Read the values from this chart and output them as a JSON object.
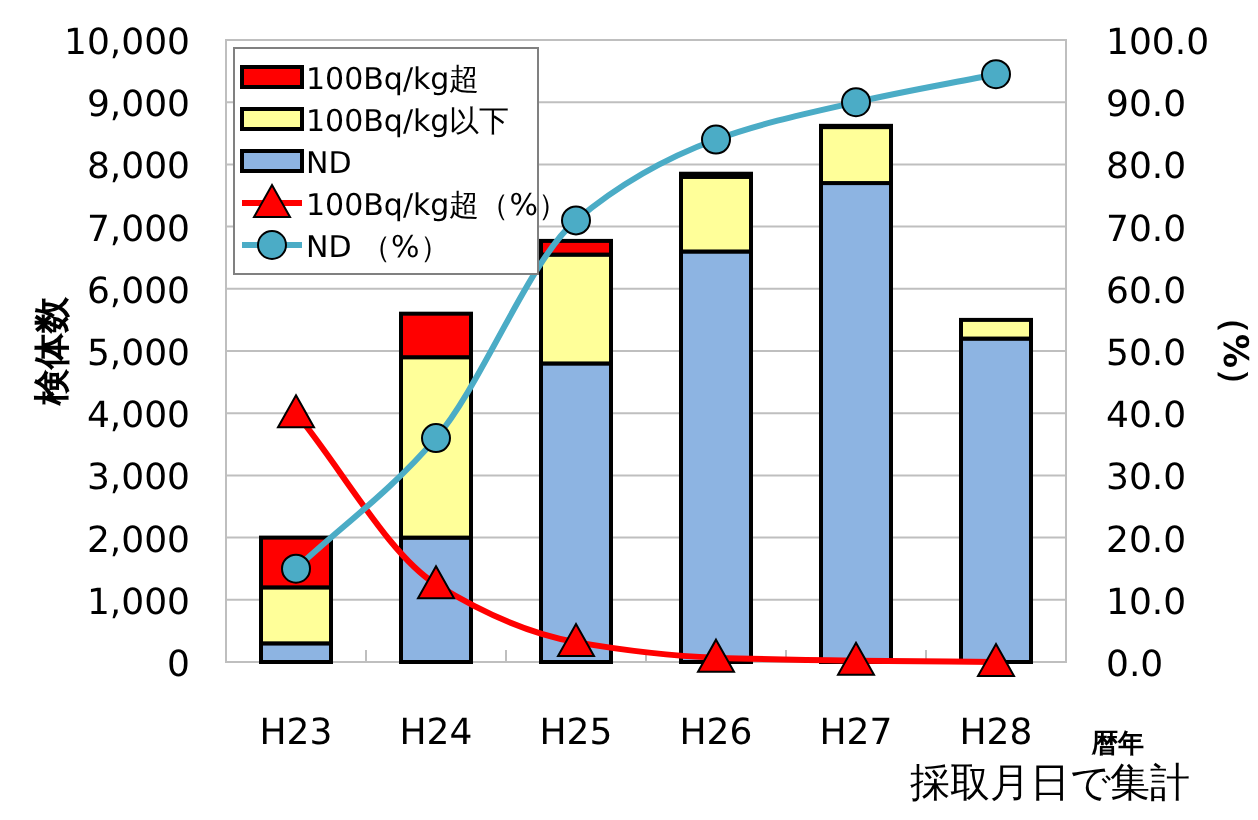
{
  "chart_data": {
    "type": "bar",
    "stacked": true,
    "ylabel": "検体数",
    "y2label": "（%）",
    "xlabel": "暦年",
    "annotations": [
      "採取月日で集計"
    ],
    "categories": [
      "H23",
      "H24",
      "H25",
      "H26",
      "H27",
      "H28"
    ],
    "series": [
      {
        "name": "ND",
        "color": "#8db4e2",
        "values": [
          300,
          2000,
          4800,
          6600,
          7700,
          5200
        ]
      },
      {
        "name": "100Bq/kg以下",
        "color": "#ffff99",
        "values": [
          900,
          2900,
          1750,
          1200,
          900,
          300
        ]
      },
      {
        "name": "100Bq/kg超",
        "color": "#ff0000",
        "values": [
          800,
          700,
          220,
          50,
          20,
          0
        ]
      },
      {
        "name": "100Bq/kg超（%）",
        "type": "line",
        "axis": "y2",
        "marker": "triangle",
        "color": "#ff0000",
        "values": [
          40,
          12.5,
          3.2,
          0.7,
          0.2,
          0
        ]
      },
      {
        "name": "ND （%）",
        "type": "line",
        "axis": "y2",
        "marker": "circle",
        "color": "#4bacc6",
        "values": [
          15,
          36,
          71,
          84,
          90,
          94.5
        ]
      }
    ],
    "ylim": [
      0,
      10000
    ],
    "yticks": [
      {
        "value": 0,
        "label": "0"
      },
      {
        "value": 1000,
        "label": "1,000"
      },
      {
        "value": 2000,
        "label": "2,000"
      },
      {
        "value": 3000,
        "label": "3,000"
      },
      {
        "value": 4000,
        "label": "4,000"
      },
      {
        "value": 5000,
        "label": "5,000"
      },
      {
        "value": 6000,
        "label": "6,000"
      },
      {
        "value": 7000,
        "label": "7,000"
      },
      {
        "value": 8000,
        "label": "8,000"
      },
      {
        "value": 9000,
        "label": "9,000"
      },
      {
        "value": 10000,
        "label": "10,000"
      }
    ],
    "y2lim": [
      0,
      100
    ],
    "y2ticks": [
      {
        "value": 0,
        "label": "0.0"
      },
      {
        "value": 10,
        "label": "10.0"
      },
      {
        "value": 20,
        "label": "20.0"
      },
      {
        "value": 30,
        "label": "30.0"
      },
      {
        "value": 40,
        "label": "40.0"
      },
      {
        "value": 50,
        "label": "50.0"
      },
      {
        "value": 60,
        "label": "60.0"
      },
      {
        "value": 70,
        "label": "70.0"
      },
      {
        "value": 80,
        "label": "80.0"
      },
      {
        "value": 90,
        "label": "90.0"
      },
      {
        "value": 100,
        "label": "100.0"
      }
    ],
    "grid": "y",
    "legend": "top left"
  }
}
